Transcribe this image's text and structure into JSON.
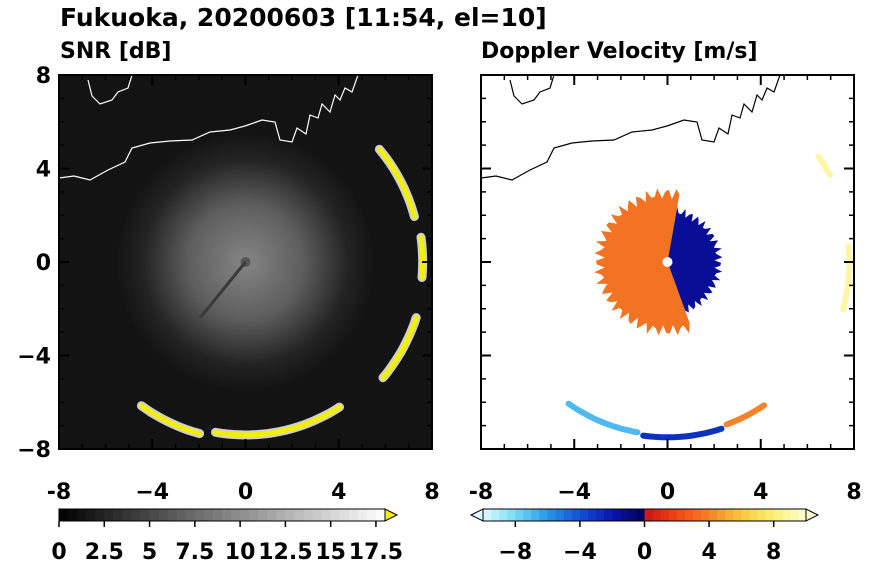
{
  "figure": {
    "title": "Fukuoka, 20200603 [11:54, el=10]"
  },
  "colors": {
    "coastline_dark_panel": "#ffffff",
    "coastline_light_panel": "#000000",
    "ring_echo": "#f2f000"
  },
  "chart_data": [
    {
      "type": "heatmap",
      "title": "SNR [dB]",
      "xlim": [
        -8,
        8
      ],
      "ylim": [
        -8,
        8
      ],
      "x_ticks": [
        "-8",
        "−4",
        "0",
        "4",
        "8"
      ],
      "y_ticks": [
        "8",
        "4",
        "0",
        "−4",
        "−8"
      ],
      "colorbar": {
        "range": [
          0,
          18
        ],
        "extend": "max",
        "ticks": [
          {
            "value": 0,
            "label": "0"
          },
          {
            "value": 2.5,
            "label": "2.5"
          },
          {
            "value": 5,
            "label": "5"
          },
          {
            "value": 7.5,
            "label": "7.5"
          },
          {
            "value": 10,
            "label": "10"
          },
          {
            "value": 12.5,
            "label": "12.5"
          },
          {
            "value": 15,
            "label": "15"
          },
          {
            "value": 17.5,
            "label": "17.5"
          }
        ]
      },
      "echo_arcs": [
        {
          "radius": 7.5,
          "start_deg": 15,
          "end_deg": 40
        },
        {
          "radius": 7.6,
          "start_deg": -5,
          "end_deg": 8
        },
        {
          "radius": 7.7,
          "start_deg": -40,
          "end_deg": -18
        },
        {
          "radius": 7.6,
          "start_deg": -126,
          "end_deg": -105
        },
        {
          "radius": 7.4,
          "start_deg": -100,
          "end_deg": -57
        }
      ]
    },
    {
      "type": "heatmap",
      "title": "Doppler Velocity [m/s]",
      "xlim": [
        -8,
        8
      ],
      "ylim": [
        -8,
        8
      ],
      "x_ticks": [
        "-8",
        "−4",
        "0",
        "4",
        "8"
      ],
      "y_ticks": [
        "8",
        "4",
        "0",
        "−4",
        "−8"
      ],
      "colorbar": {
        "range": [
          -10,
          10
        ],
        "extend": "both",
        "ticks": [
          {
            "value": -8,
            "label": "−8"
          },
          {
            "value": -4,
            "label": "−4"
          },
          {
            "value": 0,
            "label": "0"
          },
          {
            "value": 4,
            "label": "4"
          },
          {
            "value": 8,
            "label": "8"
          }
        ]
      },
      "echo_blob": {
        "center": [
          0,
          0
        ],
        "radius": 3.2,
        "receding_sector_deg": [
          -70,
          80
        ]
      },
      "echo_arcs": [
        {
          "radius": 7.4,
          "start_deg": -125,
          "end_deg": -100,
          "velocity": -7
        },
        {
          "radius": 7.5,
          "start_deg": -98,
          "end_deg": -72,
          "velocity": -3
        },
        {
          "radius": 7.4,
          "start_deg": -70,
          "end_deg": -56,
          "velocity": 4
        },
        {
          "radius": 7.8,
          "start_deg": -15,
          "end_deg": 5,
          "velocity": 9
        },
        {
          "radius": 7.9,
          "start_deg": 28,
          "end_deg": 35,
          "velocity": 9
        }
      ]
    }
  ]
}
